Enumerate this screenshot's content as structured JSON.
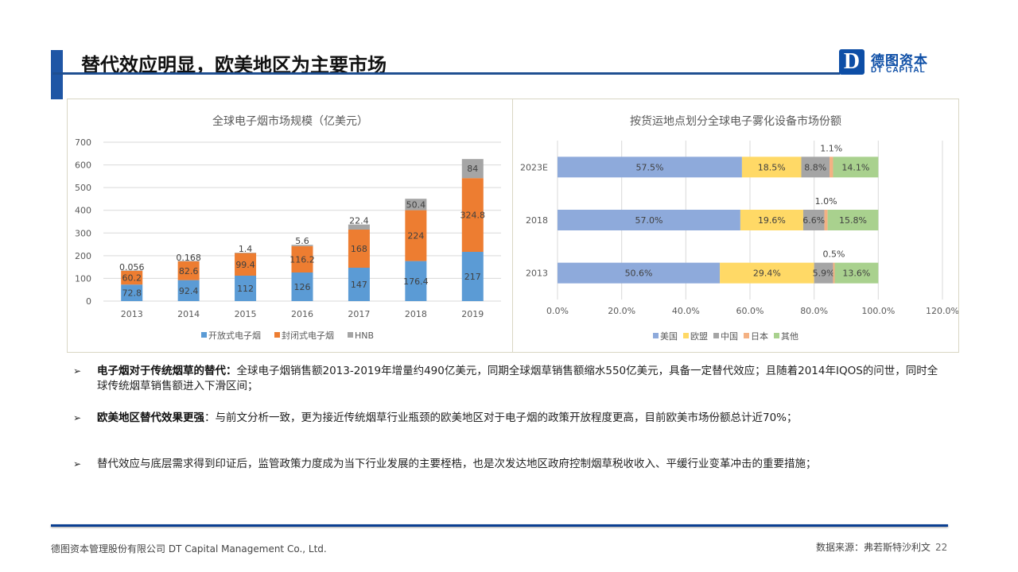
{
  "header": {
    "title": "替代效应明显，欧美地区为主要市场",
    "logo": {
      "mark": "D",
      "name_cn": "德图资本",
      "name_en": "DT CAPITAL"
    }
  },
  "chart_data": [
    {
      "type": "bar",
      "stacked": true,
      "orientation": "vertical",
      "title": "全球电子烟市场规模（亿美元）",
      "xlabel": "",
      "ylabel": "",
      "categories": [
        "2013",
        "2014",
        "2015",
        "2016",
        "2017",
        "2018",
        "2019"
      ],
      "series": [
        {
          "name": "开放式电子烟",
          "color": "#5b9bd5",
          "values": [
            72.8,
            92.4,
            112,
            126,
            147,
            176.4,
            217
          ],
          "labels": [
            "72.8",
            "92.4",
            "112",
            "126",
            "147",
            "176.4",
            "217"
          ]
        },
        {
          "name": "封闭式电子烟",
          "color": "#ed7d31",
          "values": [
            60.2,
            82.6,
            99.4,
            116.2,
            168,
            224,
            324.8
          ],
          "labels": [
            "60.2",
            "82.6",
            "99.4",
            "116.2",
            "168",
            "224",
            "324.8"
          ]
        },
        {
          "name": "HNB",
          "color": "#a5a5a5",
          "values": [
            0.056,
            0.168,
            1.4,
            5.6,
            22.4,
            50.4,
            84
          ],
          "labels": [
            "0.056",
            "0.168",
            "1.4",
            "5.6",
            "22.4",
            "50.4",
            "84"
          ]
        }
      ],
      "ylim": [
        0,
        700
      ],
      "yticks": [
        "0",
        "100",
        "200",
        "300",
        "400",
        "500",
        "600",
        "700"
      ],
      "grid": true,
      "legend": "bottom"
    },
    {
      "type": "bar",
      "stacked": true,
      "orientation": "horizontal",
      "title": "按货运地点划分全球电子雾化设备市场份额",
      "categories": [
        "2023E",
        "2018",
        "2013"
      ],
      "series": [
        {
          "name": "美国",
          "color": "#8eaadb",
          "values": [
            57.5,
            57.0,
            50.6
          ],
          "labels": [
            "57.5%",
            "57.0%",
            "50.6%"
          ]
        },
        {
          "name": "欧盟",
          "color": "#ffd966",
          "values": [
            18.5,
            19.6,
            29.4
          ],
          "labels": [
            "18.5%",
            "19.6%",
            "29.4%"
          ]
        },
        {
          "name": "中国",
          "color": "#a5a5a5",
          "values": [
            8.8,
            6.6,
            5.9
          ],
          "labels": [
            "8.8%",
            "6.6%",
            "5.9%"
          ]
        },
        {
          "name": "日本",
          "color": "#f4b183",
          "values": [
            1.1,
            1.0,
            0.5
          ],
          "labels": [
            "1.1%",
            "1.0%",
            "0.5%"
          ]
        },
        {
          "name": "其他",
          "color": "#a9d18e",
          "values": [
            14.1,
            15.8,
            13.6
          ],
          "labels": [
            "14.1%",
            "15.8%",
            "13.6%"
          ]
        }
      ],
      "xlim": [
        0,
        120
      ],
      "xticks": [
        "0.0%",
        "20.0%",
        "40.0%",
        "60.0%",
        "80.0%",
        "100.0%",
        "120.0%"
      ],
      "grid": true,
      "legend": "bottom"
    }
  ],
  "bullets": [
    {
      "bold": "电子烟对于传统烟草的替代：",
      "text": "全球电子烟销售额2013-2019年增量约490亿美元，同期全球烟草销售额缩水550亿美元，具备一定替代效应；且随着2014年IQOS的问世，同时全球传统烟草销售额进入下滑区间；"
    },
    {
      "bold": "欧美地区替代效果更强",
      "text": "：与前文分析一致，更为接近传统烟草行业瓶颈的欧美地区对于电子烟的政策开放程度更高，目前欧美市场份额总计近70%；"
    },
    {
      "bold": "",
      "text": "替代效应与底层需求得到印证后，监管政策力度成为当下行业发展的主要桎梏，也是次发达地区政府控制烟草税收收入、平缓行业变革冲击的重要措施；"
    }
  ],
  "footer": {
    "company": "德图资本管理股份有限公司  DT Capital Management  Co., Ltd.",
    "source": "数据来源：弗若斯特沙利文",
    "page": "22"
  }
}
